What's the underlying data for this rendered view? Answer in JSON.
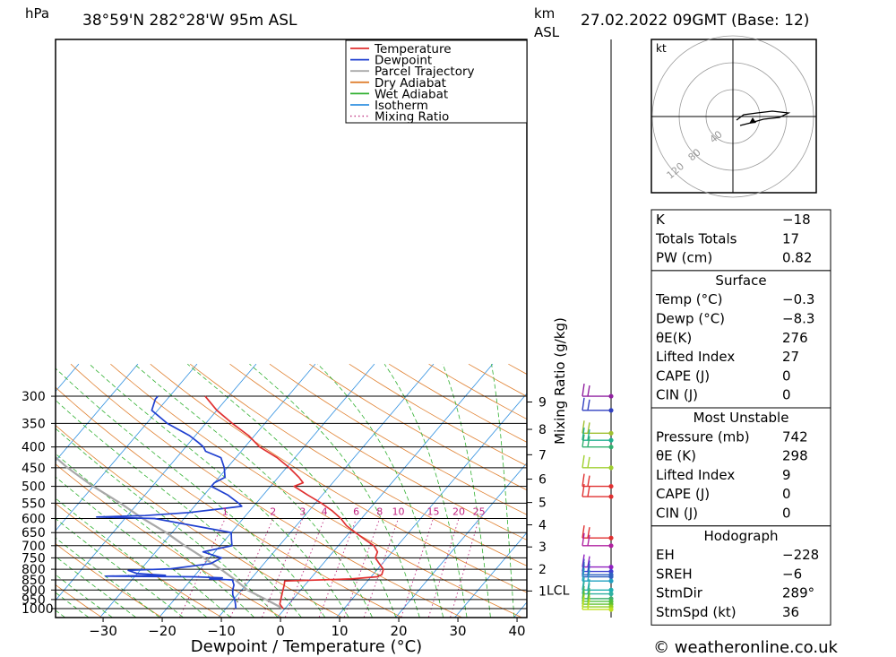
{
  "header": {
    "pressure_unit": "hPa",
    "location": "38°59'N  282°28'W  95m  ASL",
    "height_unit_line1": "km",
    "height_unit_line2": "ASL",
    "datetime": "27.02.2022  09GMT  (Base: 12)"
  },
  "chart_data": {
    "type": "line",
    "subtype": "skew-T log-P sounding",
    "xlabel": "Dewpoint / Temperature (°C)",
    "ylabel_left": "hPa",
    "ylabel_right": "Mixing Ratio (g/kg)",
    "pressure_levels": [
      300,
      350,
      400,
      450,
      500,
      550,
      600,
      650,
      700,
      750,
      800,
      850,
      900,
      950,
      1000
    ],
    "temperature_ticks": [
      -30,
      -20,
      -10,
      0,
      10,
      20,
      30,
      40
    ],
    "xlim": [
      -40,
      40
    ],
    "ylim_hpa": [
      1030,
      300
    ],
    "height_ticks_km": [
      {
        "km": "9",
        "p": 310
      },
      {
        "km": "8",
        "p": 362
      },
      {
        "km": "7",
        "p": 418
      },
      {
        "km": "6",
        "p": 480
      },
      {
        "km": "5",
        "p": 548
      },
      {
        "km": "4",
        "p": 622
      },
      {
        "km": "3",
        "p": 705
      },
      {
        "km": "2",
        "p": 800
      },
      {
        "km": "1",
        "p": 905
      }
    ],
    "lcl_label": "LCL",
    "lcl_pressure": 900,
    "mixing_ratio_labels": [
      "1",
      "2",
      "3",
      "4",
      "6",
      "8",
      "10",
      "15",
      "20",
      "25"
    ],
    "legend": [
      {
        "name": "Temperature",
        "color": "#e03030",
        "style": "solid"
      },
      {
        "name": "Dewpoint",
        "color": "#2040d0",
        "style": "solid"
      },
      {
        "name": "Parcel Trajectory",
        "color": "#a8a8a8",
        "style": "solid"
      },
      {
        "name": "Dry Adiabat",
        "color": "#e08030",
        "style": "solid"
      },
      {
        "name": "Wet Adiabat",
        "color": "#30b030",
        "style": "solid"
      },
      {
        "name": "Isotherm",
        "color": "#3090e0",
        "style": "solid"
      },
      {
        "name": "Mixing Ratio",
        "color": "#c03080",
        "style": "dotted"
      }
    ],
    "series": [
      {
        "name": "Temperature",
        "color": "#e03030",
        "points": [
          [
            1000,
            -0.3
          ],
          [
            975,
            -1.5
          ],
          [
            950,
            -2.0
          ],
          [
            925,
            -2.5
          ],
          [
            900,
            -3.0
          ],
          [
            875,
            -3.5
          ],
          [
            855,
            -4.0
          ],
          [
            845,
            7.0
          ],
          [
            835,
            11.0
          ],
          [
            825,
            11.5
          ],
          [
            800,
            11.0
          ],
          [
            775,
            9.5
          ],
          [
            750,
            8.0
          ],
          [
            725,
            7.5
          ],
          [
            700,
            6.0
          ],
          [
            680,
            4.0
          ],
          [
            650,
            1.0
          ],
          [
            625,
            -1.5
          ],
          [
            600,
            -3.5
          ],
          [
            575,
            -6.0
          ],
          [
            550,
            -9.0
          ],
          [
            525,
            -12.5
          ],
          [
            500,
            -16.0
          ],
          [
            490,
            -15.0
          ],
          [
            475,
            -16.5
          ],
          [
            450,
            -19.5
          ],
          [
            425,
            -23.0
          ],
          [
            400,
            -27.5
          ],
          [
            375,
            -31.0
          ],
          [
            350,
            -35.5
          ],
          [
            325,
            -40.0
          ],
          [
            300,
            -44.0
          ]
        ]
      },
      {
        "name": "Dewpoint",
        "color": "#2040d0",
        "points": [
          [
            1000,
            -8.3
          ],
          [
            975,
            -9.0
          ],
          [
            950,
            -9.8
          ],
          [
            925,
            -10.8
          ],
          [
            900,
            -11.5
          ],
          [
            875,
            -12.0
          ],
          [
            850,
            -13.0
          ],
          [
            845,
            -17.0
          ],
          [
            840,
            -15.0
          ],
          [
            835,
            -20.0
          ],
          [
            832,
            -35.0
          ],
          [
            828,
            -25.0
          ],
          [
            820,
            -30.0
          ],
          [
            805,
            -32.0
          ],
          [
            798,
            -25.0
          ],
          [
            775,
            -19.0
          ],
          [
            750,
            -18.0
          ],
          [
            725,
            -22.0
          ],
          [
            700,
            -18.0
          ],
          [
            675,
            -19.0
          ],
          [
            650,
            -20.0
          ],
          [
            600,
            -35.0
          ],
          [
            595,
            -45.0
          ],
          [
            590,
            -37.0
          ],
          [
            580,
            -30.0
          ],
          [
            570,
            -26.0
          ],
          [
            560,
            -22.0
          ],
          [
            550,
            -23.0
          ],
          [
            525,
            -26.0
          ],
          [
            500,
            -30.0
          ],
          [
            490,
            -30.0
          ],
          [
            475,
            -29.0
          ],
          [
            450,
            -30.5
          ],
          [
            425,
            -32.5
          ],
          [
            410,
            -36.0
          ],
          [
            400,
            -37.0
          ],
          [
            390,
            -38.5
          ],
          [
            375,
            -41.0
          ],
          [
            350,
            -46.5
          ],
          [
            325,
            -51.0
          ],
          [
            305,
            -52.0
          ],
          [
            300,
            -52.0
          ]
        ]
      },
      {
        "name": "Parcel Trajectory",
        "color": "#a8a8a8",
        "points": [
          [
            1000,
            -0.3
          ],
          [
            950,
            -4.5
          ],
          [
            900,
            -9.0
          ],
          [
            850,
            -12.5
          ],
          [
            800,
            -16.5
          ],
          [
            750,
            -21.0
          ],
          [
            700,
            -26.0
          ],
          [
            650,
            -31.0
          ],
          [
            600,
            -37.0
          ],
          [
            550,
            -43.0
          ],
          [
            500,
            -50.0
          ],
          [
            450,
            -57.0
          ],
          [
            400,
            -64.0
          ],
          [
            350,
            -72.0
          ],
          [
            300,
            -80.0
          ]
        ]
      }
    ],
    "wind_barbs": [
      {
        "p": 300,
        "color": "#9020a0"
      },
      {
        "p": 325,
        "color": "#3040c0"
      },
      {
        "p": 370,
        "color": "#a0c030"
      },
      {
        "p": 385,
        "color": "#20b090"
      },
      {
        "p": 400,
        "color": "#30b070"
      },
      {
        "p": 450,
        "color": "#a0d030"
      },
      {
        "p": 500,
        "color": "#e03030"
      },
      {
        "p": 530,
        "color": "#e03030"
      },
      {
        "p": 670,
        "color": "#e03030"
      },
      {
        "p": 700,
        "color": "#b020a0"
      },
      {
        "p": 790,
        "color": "#9020c0"
      },
      {
        "p": 810,
        "color": "#4040d0"
      },
      {
        "p": 825,
        "color": "#3060c0"
      },
      {
        "p": 835,
        "color": "#3060c0"
      },
      {
        "p": 855,
        "color": "#20a0c0"
      },
      {
        "p": 900,
        "color": "#20b0b0"
      },
      {
        "p": 920,
        "color": "#30b0a0"
      },
      {
        "p": 945,
        "color": "#40b070"
      },
      {
        "p": 960,
        "color": "#50c040"
      },
      {
        "p": 975,
        "color": "#60c030"
      },
      {
        "p": 990,
        "color": "#90d020"
      },
      {
        "p": 1005,
        "color": "#c0e020"
      }
    ]
  },
  "hodograph": {
    "unit": "kt",
    "ring_labels": [
      "40",
      "80",
      "120"
    ]
  },
  "indices": {
    "rows": [
      {
        "label": "K",
        "value": "-18"
      },
      {
        "label": "Totals Totals",
        "value": "17"
      },
      {
        "label": "PW (cm)",
        "value": "0.82"
      }
    ]
  },
  "surface": {
    "title": "Surface",
    "rows": [
      {
        "label": "Temp (°C)",
        "value": "-0.3"
      },
      {
        "label": "Dewp (°C)",
        "value": "-8.3"
      },
      {
        "label": "θE(K)",
        "value": "276"
      },
      {
        "label": "Lifted Index",
        "value": "27"
      },
      {
        "label": "CAPE (J)",
        "value": "0"
      },
      {
        "label": "CIN (J)",
        "value": "0"
      }
    ]
  },
  "most_unstable": {
    "title": "Most Unstable",
    "rows": [
      {
        "label": "Pressure (mb)",
        "value": "742"
      },
      {
        "label": "θE (K)",
        "value": "298"
      },
      {
        "label": "Lifted Index",
        "value": "9"
      },
      {
        "label": "CAPE (J)",
        "value": "0"
      },
      {
        "label": "CIN (J)",
        "value": "0"
      }
    ]
  },
  "hodograph_stats": {
    "title": "Hodograph",
    "rows": [
      {
        "label": "EH",
        "value": "-228"
      },
      {
        "label": "SREH",
        "value": "-6"
      },
      {
        "label": "StmDir",
        "value": "289°"
      },
      {
        "label": "StmSpd (kt)",
        "value": "36"
      }
    ]
  },
  "footer": {
    "copyright": "© weatheronline.co.uk"
  }
}
